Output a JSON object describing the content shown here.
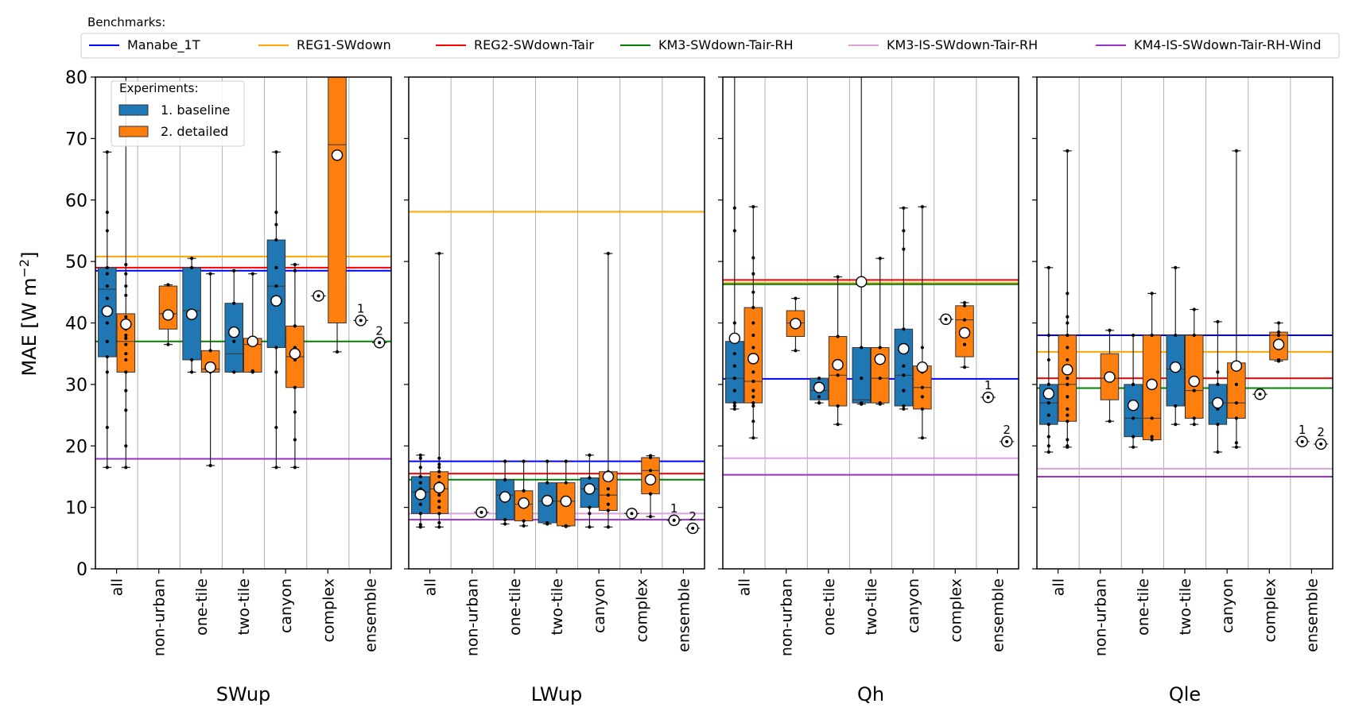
{
  "chart_data": {
    "type": "box",
    "ylabel": "MAE [W m",
    "ylabel_sup": "−2",
    "ylabel_close": "]",
    "ylim": [
      0,
      80
    ],
    "yticks": [
      0,
      10,
      20,
      30,
      40,
      50,
      60,
      70,
      80
    ],
    "categories": [
      "all",
      "non-urban",
      "one-tile",
      "two-tile",
      "canyon",
      "complex",
      "ensemble"
    ],
    "benchmark_legend": {
      "title": "Benchmarks:",
      "items": [
        {
          "name": "Manabe_1T",
          "color": "#0000ff"
        },
        {
          "name": "REG1-SWdown",
          "color": "#ffa500"
        },
        {
          "name": "REG2-SWdown-Tair",
          "color": "#ff0000"
        },
        {
          "name": "KM3-SWdown-Tair-RH",
          "color": "#008000"
        },
        {
          "name": "KM3-IS-SWdown-Tair-RH",
          "color": "#dda0dd"
        },
        {
          "name": "KM4-IS-SWdown-Tair-RH-Wind",
          "color": "#9932cc"
        }
      ]
    },
    "experiment_legend": {
      "title": "Experiments:",
      "items": [
        {
          "name": "1. baseline",
          "color": "#1f77b4"
        },
        {
          "name": "2. detailed",
          "color": "#ff7f0e"
        }
      ]
    },
    "panels": [
      {
        "name": "SWup",
        "benchmarks": [
          48.5,
          50.8,
          49.0,
          37.0,
          17.9,
          17.9
        ],
        "boxes": [
          {
            "cat": 0,
            "exp": 0,
            "q1": 34.5,
            "med": 45.5,
            "q3": 49.0,
            "wlo": 16.5,
            "whi": 67.8,
            "mean": 41.9,
            "pts": [
              16.5,
              23,
              32,
              34.5,
              37,
              40,
              42.5,
              44,
              46,
              48,
              49,
              55,
              58,
              67.8
            ]
          },
          {
            "cat": 0,
            "exp": 1,
            "q1": 32.0,
            "med": 37.0,
            "q3": 41.5,
            "wlo": 16.5,
            "whi": 80,
            "mean": 39.8,
            "pts": [
              16.5,
              20,
              25.8,
              29,
              32,
              34,
              35,
              36.5,
              37.5,
              38,
              39,
              40,
              41,
              44.5,
              46,
              48,
              49.5
            ]
          },
          {
            "cat": 1,
            "exp": 1,
            "q1": 39.0,
            "med": 41.5,
            "q3": 46.0,
            "wlo": 36.5,
            "whi": 46.2,
            "mean": 41.3,
            "pts": [
              36.5,
              41.5,
              46.2
            ]
          },
          {
            "cat": 2,
            "exp": 0,
            "q1": 34.0,
            "med": 42.0,
            "q3": 49.0,
            "wlo": 32.0,
            "whi": 50.5,
            "mean": 41.4,
            "pts": [
              32,
              34,
              41,
              49,
              50.5
            ]
          },
          {
            "cat": 2,
            "exp": 1,
            "q1": 32.0,
            "med": 32.5,
            "q3": 35.5,
            "wlo": 16.8,
            "whi": 48.0,
            "mean": 32.8,
            "pts": [
              16.8,
              32,
              32.5,
              35.5,
              48
            ]
          },
          {
            "cat": 3,
            "exp": 0,
            "q1": 32.0,
            "med": 35.0,
            "q3": 43.2,
            "wlo": 32.0,
            "whi": 48.5,
            "mean": 38.5,
            "pts": [
              32,
              37,
              43.2,
              48.5
            ]
          },
          {
            "cat": 3,
            "exp": 1,
            "q1": 32.0,
            "med": 36.5,
            "q3": 37.5,
            "wlo": 32.0,
            "whi": 48.0,
            "mean": 37.0,
            "pts": [
              32,
              32.2,
              37,
              48
            ]
          },
          {
            "cat": 4,
            "exp": 0,
            "q1": 36.0,
            "med": 46.0,
            "q3": 53.5,
            "wlo": 16.5,
            "whi": 67.8,
            "mean": 43.6,
            "pts": [
              16.5,
              23,
              32,
              36,
              43,
              46,
              49,
              53.5,
              56,
              58,
              67.8
            ]
          },
          {
            "cat": 4,
            "exp": 1,
            "q1": 29.5,
            "med": 34.5,
            "q3": 39.5,
            "wlo": 16.5,
            "whi": 49.5,
            "mean": 35.0,
            "pts": [
              16.5,
              21,
              25.5,
              29.5,
              34,
              36,
              39.5,
              48.5,
              49.5
            ]
          },
          {
            "cat": 5,
            "exp": 0,
            "single": 44.4,
            "mean": 44.4
          },
          {
            "cat": 5,
            "exp": 1,
            "q1": 40.0,
            "med": 69.0,
            "q3": 80,
            "wlo": 35.3,
            "whi": 80,
            "mean": 67.3,
            "pts": [
              35.3
            ]
          },
          {
            "cat": 6,
            "exp": 0,
            "single": 40.4,
            "mean": 40.4,
            "label": "1"
          },
          {
            "cat": 6,
            "exp": 1,
            "single": 36.8,
            "mean": 36.8,
            "label": "2"
          }
        ]
      },
      {
        "name": "LWup",
        "benchmarks": [
          17.5,
          58.1,
          15.5,
          14.5,
          9.0,
          8.0
        ],
        "boxes": [
          {
            "cat": 0,
            "exp": 0,
            "q1": 9.0,
            "med": 12.5,
            "q3": 15.0,
            "wlo": 6.8,
            "whi": 18.5,
            "mean": 12.1,
            "pts": [
              6.8,
              7.2,
              9,
              10.5,
              12,
              13,
              14,
              15,
              16.5,
              18,
              18.5
            ]
          },
          {
            "cat": 0,
            "exp": 1,
            "q1": 9.0,
            "med": 13.0,
            "q3": 15.8,
            "wlo": 6.8,
            "whi": 51.3,
            "mean": 13.2,
            "pts": [
              6.8,
              7.5,
              9,
              10,
              11,
              12,
              13,
              14,
              15,
              15.8,
              16.5,
              17,
              18,
              51.3
            ]
          },
          {
            "cat": 1,
            "exp": 1,
            "single": 9.2,
            "mean": 9.2
          },
          {
            "cat": 2,
            "exp": 0,
            "q1": 8.0,
            "med": 12.0,
            "q3": 14.5,
            "wlo": 7.3,
            "whi": 17.5,
            "mean": 11.7,
            "pts": [
              7.3,
              8,
              11,
              12,
              14.5,
              17.5
            ]
          },
          {
            "cat": 2,
            "exp": 1,
            "q1": 7.8,
            "med": 10.5,
            "q3": 12.7,
            "wlo": 7.0,
            "whi": 17.5,
            "mean": 10.7,
            "pts": [
              7,
              7.8,
              10.5,
              12.7,
              17.5
            ]
          },
          {
            "cat": 3,
            "exp": 0,
            "q1": 7.5,
            "med": 11.0,
            "q3": 14.0,
            "wlo": 7.3,
            "whi": 17.5,
            "mean": 11.1,
            "pts": [
              7.3,
              7.5,
              11,
              14,
              17.5
            ]
          },
          {
            "cat": 3,
            "exp": 1,
            "q1": 7.0,
            "med": 11.0,
            "q3": 14.0,
            "wlo": 6.9,
            "whi": 17.5,
            "mean": 11.0,
            "pts": [
              6.9,
              7,
              11,
              14,
              17.5
            ]
          },
          {
            "cat": 4,
            "exp": 0,
            "q1": 10.0,
            "med": 13.0,
            "q3": 14.8,
            "wlo": 6.8,
            "whi": 18.5,
            "mean": 13.0,
            "pts": [
              6.8,
              9,
              10,
              12.5,
              13,
              14.8,
              18.5
            ]
          },
          {
            "cat": 4,
            "exp": 1,
            "q1": 9.5,
            "med": 12.0,
            "q3": 15.8,
            "wlo": 6.8,
            "whi": 51.3,
            "mean": 15.0,
            "pts": [
              6.8,
              9.5,
              10.5,
              12,
              13,
              15.8,
              51.3
            ]
          },
          {
            "cat": 5,
            "exp": 0,
            "single": 9.0,
            "mean": 9.0
          },
          {
            "cat": 5,
            "exp": 1,
            "q1": 12.2,
            "med": 16.0,
            "q3": 18.1,
            "wlo": 8.5,
            "whi": 18.4,
            "mean": 14.5,
            "pts": [
              8.5,
              12.2,
              16,
              18.1,
              18.4
            ]
          },
          {
            "cat": 6,
            "exp": 0,
            "single": 7.9,
            "mean": 7.9,
            "label": "1"
          },
          {
            "cat": 6,
            "exp": 1,
            "single": 6.6,
            "mean": 6.6,
            "label": "2"
          }
        ]
      },
      {
        "name": "Qh",
        "benchmarks": [
          30.9,
          46.5,
          47.0,
          46.3,
          18.0,
          15.3
        ],
        "boxes": [
          {
            "cat": 0,
            "exp": 0,
            "q1": 27.0,
            "med": 31.0,
            "q3": 37.0,
            "wlo": 26.0,
            "whi": 80,
            "mean": 37.5,
            "pts": [
              26,
              26.5,
              27,
              29,
              31,
              33,
              35,
              37,
              40,
              55,
              58.7
            ]
          },
          {
            "cat": 0,
            "exp": 1,
            "q1": 27.0,
            "med": 30.5,
            "q3": 42.5,
            "wlo": 21.3,
            "whi": 58.9,
            "mean": 34.2,
            "pts": [
              21.3,
              24,
              26.5,
              27,
              28,
              29,
              30.5,
              32,
              34,
              36,
              38,
              40,
              42.5,
              45,
              48,
              50.6,
              58.9
            ]
          },
          {
            "cat": 1,
            "exp": 1,
            "q1": 37.8,
            "med": 40.0,
            "q3": 42.0,
            "wlo": 35.5,
            "whi": 44.0,
            "mean": 39.9,
            "pts": [
              35.5,
              40,
              44
            ]
          },
          {
            "cat": 2,
            "exp": 0,
            "q1": 27.5,
            "med": 29.0,
            "q3": 31.0,
            "wlo": 27.0,
            "whi": 31.0,
            "mean": 29.5,
            "pts": [
              27,
              28,
              29,
              31
            ]
          },
          {
            "cat": 2,
            "exp": 1,
            "q1": 26.5,
            "med": 31.5,
            "q3": 37.8,
            "wlo": 23.5,
            "whi": 47.5,
            "mean": 33.2,
            "pts": [
              23.5,
              26.5,
              31.5,
              37.8,
              47.5
            ]
          },
          {
            "cat": 3,
            "exp": 0,
            "q1": 27.0,
            "med": 27.5,
            "q3": 36.0,
            "wlo": 26.8,
            "whi": 80,
            "mean": 46.7,
            "pts": [
              26.8,
              27,
              31,
              36
            ]
          },
          {
            "cat": 3,
            "exp": 1,
            "q1": 27.0,
            "med": 31.0,
            "q3": 36.0,
            "wlo": 26.8,
            "whi": 50.5,
            "mean": 34.1,
            "pts": [
              26.8,
              27,
              31,
              36,
              50.5
            ]
          },
          {
            "cat": 4,
            "exp": 0,
            "q1": 26.5,
            "med": 31.5,
            "q3": 39.0,
            "wlo": 26.0,
            "whi": 58.7,
            "mean": 35.8,
            "pts": [
              26,
              26.5,
              29,
              31.5,
              33,
              36,
              39,
              52,
              55,
              58.7
            ]
          },
          {
            "cat": 4,
            "exp": 1,
            "q1": 26.0,
            "med": 29.5,
            "q3": 33.0,
            "wlo": 21.3,
            "whi": 58.9,
            "mean": 32.8,
            "pts": [
              21.3,
              26,
              28,
              29.5,
              32,
              33,
              36,
              58.9
            ]
          },
          {
            "cat": 5,
            "exp": 0,
            "single": 40.6,
            "mean": 40.6
          },
          {
            "cat": 5,
            "exp": 1,
            "q1": 34.5,
            "med": 40.5,
            "q3": 42.8,
            "wlo": 32.8,
            "whi": 43.3,
            "mean": 38.4,
            "pts": [
              32.8,
              36.5,
              40.5,
              42.8,
              43.3
            ]
          },
          {
            "cat": 6,
            "exp": 0,
            "single": 27.9,
            "mean": 27.9,
            "label": "1"
          },
          {
            "cat": 6,
            "exp": 1,
            "single": 20.7,
            "mean": 20.7,
            "label": "2"
          }
        ]
      },
      {
        "name": "Qle",
        "benchmarks": [
          38.0,
          35.3,
          31.0,
          29.4,
          16.3,
          15.0
        ],
        "boxes": [
          {
            "cat": 0,
            "exp": 0,
            "q1": 23.5,
            "med": 27.0,
            "q3": 30.0,
            "wlo": 19.0,
            "whi": 49.0,
            "mean": 28.5,
            "pts": [
              19,
              20,
              21.5,
              23.5,
              25,
              27,
              28.5,
              30,
              34,
              38,
              49
            ]
          },
          {
            "cat": 0,
            "exp": 1,
            "q1": 24.0,
            "med": 30.0,
            "q3": 38.0,
            "wlo": 19.8,
            "whi": 68.0,
            "mean": 32.4,
            "pts": [
              19.8,
              20,
              21,
              24,
              25,
              26,
              28,
              30,
              31,
              33,
              34,
              36,
              38,
              40,
              41,
              44.8,
              68
            ]
          },
          {
            "cat": 1,
            "exp": 1,
            "q1": 27.5,
            "med": 31.0,
            "q3": 35.0,
            "wlo": 24.0,
            "whi": 38.8,
            "mean": 31.2,
            "pts": [
              24,
              31,
              38.8
            ]
          },
          {
            "cat": 2,
            "exp": 0,
            "q1": 21.5,
            "med": 24.5,
            "q3": 30.0,
            "wlo": 19.8,
            "whi": 38.0,
            "mean": 26.6,
            "pts": [
              19.8,
              21.5,
              24.5,
              30,
              38
            ]
          },
          {
            "cat": 2,
            "exp": 1,
            "q1": 21.0,
            "med": 24.5,
            "q3": 38.0,
            "wlo": 21.0,
            "whi": 44.8,
            "mean": 30.0,
            "pts": [
              21,
              21.5,
              24.5,
              38,
              44.8
            ]
          },
          {
            "cat": 3,
            "exp": 0,
            "q1": 26.5,
            "med": 32.5,
            "q3": 38.0,
            "wlo": 23.5,
            "whi": 49.0,
            "mean": 32.8,
            "pts": [
              23.5,
              26.5,
              32.5,
              38,
              49
            ]
          },
          {
            "cat": 3,
            "exp": 1,
            "q1": 24.5,
            "med": 29.0,
            "q3": 38.0,
            "wlo": 23.5,
            "whi": 42.2,
            "mean": 30.5,
            "pts": [
              23.5,
              24.5,
              29,
              38,
              42.2
            ]
          },
          {
            "cat": 4,
            "exp": 0,
            "q1": 23.5,
            "med": 27.0,
            "q3": 30.0,
            "wlo": 19.0,
            "whi": 40.2,
            "mean": 27.0,
            "pts": [
              19,
              23.5,
              26,
              27,
              30,
              32,
              40.2
            ]
          },
          {
            "cat": 4,
            "exp": 1,
            "q1": 24.5,
            "med": 27.0,
            "q3": 33.5,
            "wlo": 19.8,
            "whi": 68.0,
            "mean": 33.0,
            "pts": [
              19.8,
              20.5,
              24.5,
              27,
              30,
              33.5,
              68
            ]
          },
          {
            "cat": 5,
            "exp": 0,
            "single": 28.4,
            "mean": 28.4
          },
          {
            "cat": 5,
            "exp": 1,
            "q1": 34.0,
            "med": 38.0,
            "q3": 38.5,
            "wlo": 33.8,
            "whi": 40.0,
            "mean": 36.5,
            "pts": [
              33.8,
              34,
              38,
              38.5,
              40
            ]
          },
          {
            "cat": 6,
            "exp": 0,
            "single": 20.7,
            "mean": 20.7,
            "label": "1"
          },
          {
            "cat": 6,
            "exp": 1,
            "single": 20.3,
            "mean": 20.3,
            "label": "2"
          }
        ]
      }
    ]
  }
}
